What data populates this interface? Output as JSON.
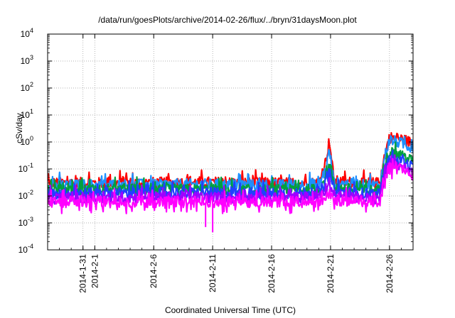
{
  "chart_data": {
    "type": "line",
    "title": "/data/run/goesPlots/archive/2014-02-26/flux/../bryn/31daysMoon.plot",
    "xlabel": "Coordinated Universal Time (UTC)",
    "ylabel": "cSv/day",
    "y_scale": "log",
    "ylim": [
      0.0001,
      10000
    ],
    "y_ticks": [
      {
        "value": 0.0001,
        "base": "10",
        "exp": "-4"
      },
      {
        "value": 0.001,
        "base": "10",
        "exp": "-3"
      },
      {
        "value": 0.01,
        "base": "10",
        "exp": "-2"
      },
      {
        "value": 0.1,
        "base": "10",
        "exp": "-1"
      },
      {
        "value": 1,
        "base": "10",
        "exp": "0"
      },
      {
        "value": 10,
        "base": "10",
        "exp": "1"
      },
      {
        "value": 100,
        "base": "10",
        "exp": "2"
      },
      {
        "value": 1000,
        "base": "10",
        "exp": "3"
      },
      {
        "value": 10000,
        "base": "10",
        "exp": "4"
      }
    ],
    "xlim": [
      "2014-01-28",
      "2014-02-28"
    ],
    "x_ticks": [
      "2014-1-31",
      "2014-2-1",
      "2014-2-6",
      "2014-2-11",
      "2014-2-16",
      "2014-2-21",
      "2014-2-26"
    ],
    "grid": true,
    "series": [
      {
        "color": "#ff0000",
        "base": 0.032,
        "x": [
          "2014-01-28",
          "2014-02-05",
          "2014-02-10",
          "2014-02-15",
          "2014-02-20",
          "2014-02-20.6",
          "2014-02-20.9",
          "2014-02-21.3",
          "2014-02-24",
          "2014-02-25.2",
          "2014-02-25.6",
          "2014-02-26",
          "2014-02-27",
          "2014-02-28"
        ],
        "y": [
          0.03,
          0.03,
          0.032,
          0.03,
          0.03,
          0.2,
          1.2,
          0.035,
          0.03,
          0.03,
          0.35,
          1.5,
          1.3,
          0.9
        ]
      },
      {
        "color": "#1e90ff",
        "base": 0.026,
        "x": [
          "2014-01-28",
          "2014-02-05",
          "2014-02-10",
          "2014-02-15",
          "2014-02-20",
          "2014-02-20.6",
          "2014-02-20.9",
          "2014-02-21.3",
          "2014-02-24",
          "2014-02-25.2",
          "2014-02-25.6",
          "2014-02-26",
          "2014-02-27",
          "2014-02-28"
        ],
        "y": [
          0.025,
          0.026,
          0.027,
          0.025,
          0.026,
          0.1,
          0.5,
          0.03,
          0.025,
          0.025,
          0.3,
          1.2,
          0.9,
          0.6
        ]
      },
      {
        "color": "#00a040",
        "base": 0.017,
        "x": [
          "2014-01-28",
          "2014-02-05",
          "2014-02-10",
          "2014-02-15",
          "2014-02-20",
          "2014-02-20.6",
          "2014-02-20.9",
          "2014-02-21.3",
          "2014-02-24",
          "2014-02-25.2",
          "2014-02-25.6",
          "2014-02-26",
          "2014-02-27",
          "2014-02-28"
        ],
        "y": [
          0.016,
          0.017,
          0.017,
          0.016,
          0.017,
          0.05,
          0.15,
          0.02,
          0.016,
          0.016,
          0.15,
          0.45,
          0.3,
          0.2
        ]
      },
      {
        "color": "#2040ff",
        "base": 0.013,
        "x": [
          "2014-01-28",
          "2014-02-05",
          "2014-02-10",
          "2014-02-15",
          "2014-02-20",
          "2014-02-20.6",
          "2014-02-20.9",
          "2014-02-21.3",
          "2014-02-24",
          "2014-02-25.2",
          "2014-02-25.6",
          "2014-02-26",
          "2014-02-27",
          "2014-02-28"
        ],
        "y": [
          0.012,
          0.013,
          0.013,
          0.012,
          0.013,
          0.03,
          0.08,
          0.015,
          0.012,
          0.012,
          0.1,
          0.22,
          0.18,
          0.12
        ]
      },
      {
        "color": "#a000ff",
        "base": 0.009,
        "x": [
          "2014-01-28",
          "2014-02-05",
          "2014-02-10",
          "2014-02-15",
          "2014-02-20",
          "2014-02-20.6",
          "2014-02-20.9",
          "2014-02-21.3",
          "2014-02-24",
          "2014-02-25.2",
          "2014-02-25.6",
          "2014-02-26",
          "2014-02-27",
          "2014-02-28"
        ],
        "y": [
          0.008,
          0.009,
          0.009,
          0.008,
          0.009,
          0.015,
          0.03,
          0.01,
          0.008,
          0.008,
          0.07,
          0.15,
          0.12,
          0.08
        ]
      },
      {
        "color": "#ff00ff",
        "base": 0.006,
        "x": [
          "2014-01-28",
          "2014-02-05",
          "2014-02-10",
          "2014-02-15",
          "2014-02-20",
          "2014-02-20.6",
          "2014-02-20.9",
          "2014-02-21.3",
          "2014-02-24",
          "2014-02-25.2",
          "2014-02-25.6",
          "2014-02-26",
          "2014-02-27",
          "2014-02-28"
        ],
        "y": [
          0.006,
          0.006,
          0.006,
          0.006,
          0.006,
          0.008,
          0.012,
          0.007,
          0.006,
          0.006,
          0.05,
          0.12,
          0.1,
          0.06
        ]
      }
    ],
    "dips": [
      {
        "x": "2014-02-10.4",
        "y": 0.0007
      },
      {
        "x": "2014-02-11.0",
        "y": 0.00045
      }
    ]
  }
}
